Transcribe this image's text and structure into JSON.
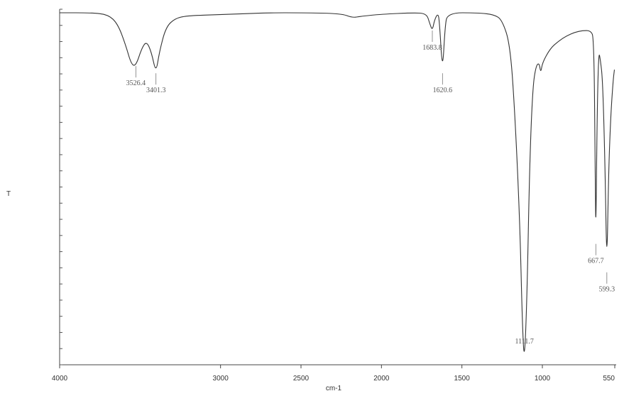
{
  "chart_data": {
    "type": "line",
    "title": "",
    "xlabel": "cm-1",
    "ylabel": "T",
    "xlim": [
      4000,
      550
    ],
    "x_reversed": true,
    "ylim": [
      0,
      100
    ],
    "grid": false,
    "line_color": "#333333",
    "x_ticks": [
      "4000",
      "3000",
      "2500",
      "2000",
      "1500",
      "1000",
      "550"
    ],
    "x_tick_values": [
      4000,
      3000,
      2500,
      2000,
      1500,
      1000,
      550
    ],
    "annotations": [
      {
        "label": "3526.4",
        "x": 3526.4,
        "y": 84
      },
      {
        "label": "3401.3",
        "x": 3401.3,
        "y": 82
      },
      {
        "label": "1683.8",
        "x": 1683.8,
        "y": 94
      },
      {
        "label": "1620.6",
        "x": 1620.6,
        "y": 82
      },
      {
        "label": "1111.7",
        "x": 1111.7,
        "y": 0
      },
      {
        "label": "667.7",
        "x": 667.7,
        "y": 34
      },
      {
        "label": "599.3",
        "x": 599.3,
        "y": 26
      }
    ],
    "series": [
      {
        "points": [
          [
            4000,
            99
          ],
          [
            3800,
            99
          ],
          [
            3700,
            98.5
          ],
          [
            3640,
            96
          ],
          [
            3590,
            90
          ],
          [
            3555,
            84.5
          ],
          [
            3526.4,
            84
          ],
          [
            3490,
            89
          ],
          [
            3460,
            91
          ],
          [
            3430,
            88
          ],
          [
            3401.3,
            82
          ],
          [
            3380,
            88
          ],
          [
            3340,
            95
          ],
          [
            3280,
            97.5
          ],
          [
            3200,
            98.2
          ],
          [
            3000,
            98.5
          ],
          [
            2700,
            99
          ],
          [
            2500,
            99
          ],
          [
            2250,
            98.8
          ],
          [
            2180,
            97.6
          ],
          [
            2130,
            98
          ],
          [
            2000,
            98.6
          ],
          [
            1800,
            99
          ],
          [
            1720,
            98.8
          ],
          [
            1700,
            96
          ],
          [
            1683.8,
            94
          ],
          [
            1670,
            97
          ],
          [
            1650,
            98.8
          ],
          [
            1640,
            97
          ],
          [
            1620.6,
            82
          ],
          [
            1605,
            95
          ],
          [
            1590,
            99
          ],
          [
            1400,
            99
          ],
          [
            1300,
            98.5
          ],
          [
            1250,
            97
          ],
          [
            1200,
            90
          ],
          [
            1170,
            70
          ],
          [
            1140,
            40
          ],
          [
            1125,
            12
          ],
          [
            1111.7,
            0
          ],
          [
            1095,
            20
          ],
          [
            1080,
            55
          ],
          [
            1060,
            78
          ],
          [
            1040,
            84
          ],
          [
            1020,
            85
          ],
          [
            1010,
            82
          ],
          [
            1000,
            85
          ],
          [
            950,
            89
          ],
          [
            900,
            91
          ],
          [
            850,
            92.5
          ],
          [
            800,
            93.5
          ],
          [
            750,
            94
          ],
          [
            700,
            94
          ],
          [
            680,
            92
          ],
          [
            672,
            60
          ],
          [
            667.7,
            34
          ],
          [
            660,
            70
          ],
          [
            650,
            88
          ],
          [
            640,
            86
          ],
          [
            625,
            80
          ],
          [
            610,
            55
          ],
          [
            599.3,
            26
          ],
          [
            588,
            55
          ],
          [
            575,
            70
          ],
          [
            560,
            80
          ],
          [
            552,
            83
          ]
        ]
      }
    ]
  }
}
